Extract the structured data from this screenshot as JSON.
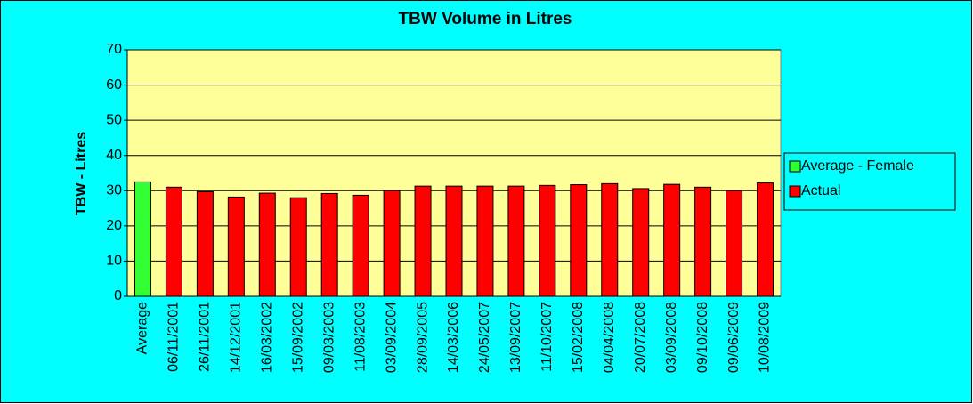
{
  "chart_data": {
    "type": "bar",
    "title": "TBW Volume in Litres",
    "y_label": "TBW - Litres",
    "categories": [
      "Average",
      "06/11/2001",
      "26/11/2001",
      "14/12/2001",
      "16/03/2002",
      "15/09/2002",
      "09/03/2003",
      "11/08/2003",
      "03/09/2004",
      "28/09/2005",
      "14/03/2006",
      "24/05/2007",
      "13/09/2007",
      "11/10/2007",
      "15/02/2008",
      "04/04/2008",
      "20/07/2008",
      "03/09/2008",
      "09/10/2008",
      "09/06/2009",
      "10/08/2009"
    ],
    "series": [
      {
        "name": "Average - Female",
        "color": "#33ff33",
        "values": [
          32.5,
          null,
          null,
          null,
          null,
          null,
          null,
          null,
          null,
          null,
          null,
          null,
          null,
          null,
          null,
          null,
          null,
          null,
          null,
          null,
          null
        ]
      },
      {
        "name": "Actual",
        "color": "#ff0000",
        "values": [
          null,
          31.0,
          29.7,
          28.2,
          29.3,
          28.0,
          29.2,
          28.7,
          30.0,
          31.3,
          31.3,
          31.3,
          31.3,
          31.5,
          31.7,
          32.0,
          30.6,
          31.8,
          31.0,
          30.0,
          32.2
        ]
      }
    ],
    "ylim": [
      0,
      70
    ],
    "yticks": [
      0,
      10,
      20,
      30,
      40,
      50,
      60,
      70
    ],
    "grid": true,
    "legend": "right"
  }
}
